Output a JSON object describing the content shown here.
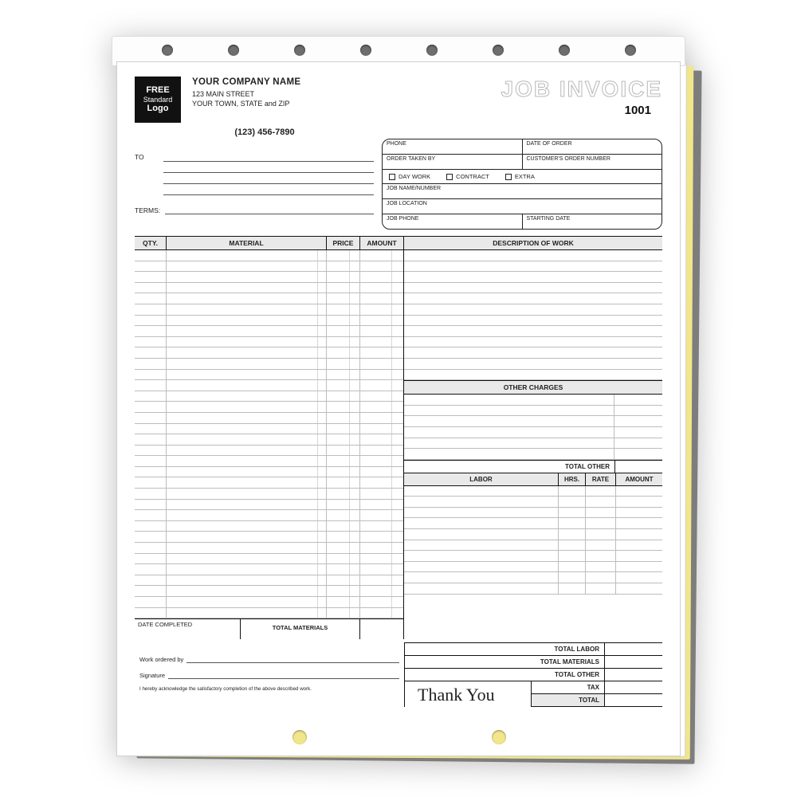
{
  "logo": {
    "l1": "FREE",
    "l2": "Standard",
    "l3": "Logo"
  },
  "company": {
    "name": "YOUR COMPANY NAME",
    "street": "123 MAIN STREET",
    "city": "YOUR TOWN, STATE and ZIP",
    "phone": "(123) 456-7890"
  },
  "title": "JOB INVOICE",
  "invoice_no": "1001",
  "to_label": "TO",
  "terms_label": "TERMS:",
  "orderbox": {
    "phone": "PHONE",
    "date_of_order": "DATE OF ORDER",
    "order_taken_by": "ORDER TAKEN BY",
    "cust_order_no": "CUSTOMER'S ORDER NUMBER",
    "day_work": "DAY WORK",
    "contract": "CONTRACT",
    "extra": "EXTRA",
    "job_name": "JOB NAME/NUMBER",
    "job_location": "JOB LOCATION",
    "job_phone": "JOB PHONE",
    "starting_date": "STARTING DATE"
  },
  "cols": {
    "qty": "QTY.",
    "material": "MATERIAL",
    "price": "PRICE",
    "amount": "AMOUNT",
    "desc": "DESCRIPTION OF WORK"
  },
  "other_charges": "OTHER CHARGES",
  "total_other": "TOTAL OTHER",
  "labor_hdr": {
    "labor": "LABOR",
    "hrs": "HRS.",
    "rate": "RATE",
    "amount": "AMOUNT"
  },
  "left_foot": {
    "date_completed": "DATE COMPLETED",
    "total_materials": "TOTAL MATERIALS"
  },
  "sigs": {
    "ordered": "Work ordered by",
    "signature": "Signature",
    "ack": "I hereby acknowledge the satisfactory completion of the above described work."
  },
  "summary": {
    "total_labor": "TOTAL LABOR",
    "total_materials": "TOTAL MATERIALS",
    "total_other": "TOTAL OTHER",
    "tax": "TAX",
    "total": "TOTAL",
    "thank_you": "Thank You"
  },
  "layout": {
    "material_rows": 34,
    "desc_rows": 12,
    "other_rows": 6,
    "labor_rows": 10
  },
  "colors": {
    "shade": "#e9e9e9",
    "line": "#bdbdbd",
    "border": "#111",
    "carbon_yellow": "#f1e68a"
  }
}
